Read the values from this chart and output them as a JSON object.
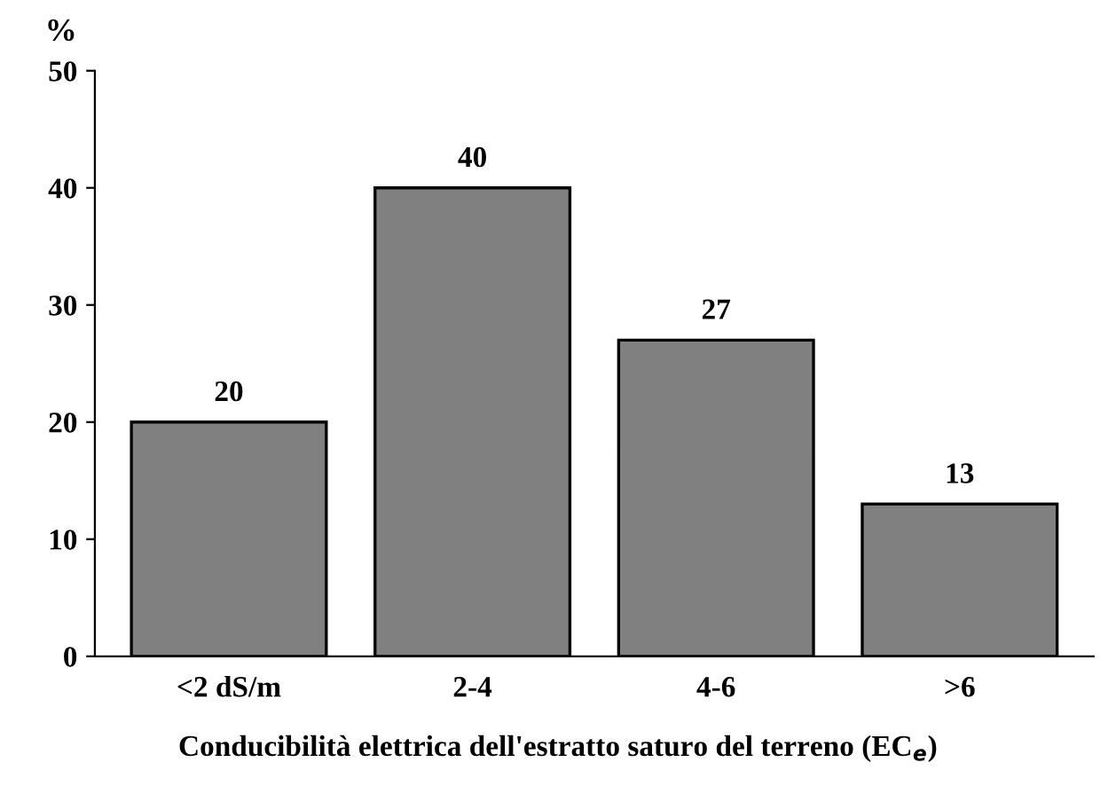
{
  "chart_data": {
    "type": "bar",
    "ylabel": "%",
    "xlabel": "Conducibilità elettrica dell'estratto saturo del terreno (EC$_{e}$)",
    "categories": [
      "<2 dS/m",
      "2-4",
      "4-6",
      ">6"
    ],
    "values": [
      20,
      40,
      27,
      13
    ],
    "color": "#808080",
    "ylim": [
      0,
      50
    ],
    "yticks": [
      0,
      10,
      20,
      30,
      40,
      50
    ],
    "data_labels": true,
    "grid": false,
    "legend": false
  }
}
